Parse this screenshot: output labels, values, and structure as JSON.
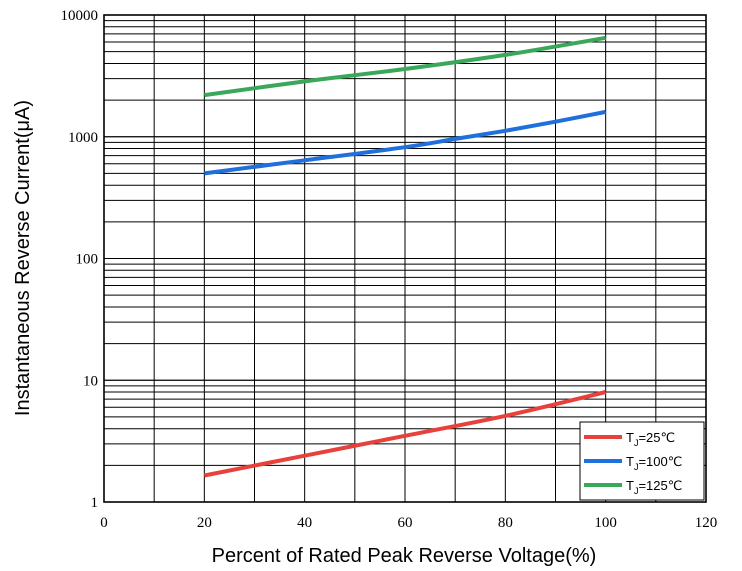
{
  "chart_data": {
    "type": "line",
    "xlabel": "Percent of Rated Peak Reverse Voltage(%)",
    "ylabel": "Instantaneous Reverse Current(μA)",
    "xlim": [
      0,
      120
    ],
    "ylim": [
      1,
      10000
    ],
    "yscale": "log",
    "grid": true,
    "legend_position": "bottom-right",
    "x_ticks": [
      "0",
      "20",
      "40",
      "60",
      "80",
      "100",
      "120"
    ],
    "y_ticks": [
      "1",
      "10",
      "100",
      "1000",
      "10000"
    ],
    "series": [
      {
        "name": "TJ=25℃",
        "legend": {
          "main": "T",
          "sub": "J",
          "rest": "=25℃"
        },
        "color": "#e8413c",
        "x": [
          20,
          40,
          60,
          80,
          100
        ],
        "y": [
          1.65,
          2.4,
          3.5,
          5.1,
          8.0
        ]
      },
      {
        "name": "TJ=100℃",
        "legend": {
          "main": "T",
          "sub": "J",
          "rest": "=100℃"
        },
        "color": "#1f6fdc",
        "x": [
          20,
          40,
          60,
          70,
          80,
          90,
          100
        ],
        "y": [
          500,
          640,
          820,
          960,
          1120,
          1330,
          1600
        ]
      },
      {
        "name": "TJ=125℃",
        "legend": {
          "main": "T",
          "sub": "J",
          "rest": "=125℃"
        },
        "color": "#3aa85a",
        "x": [
          20,
          40,
          60,
          80,
          100
        ],
        "y": [
          2200,
          2850,
          3600,
          4700,
          6500
        ]
      }
    ]
  }
}
